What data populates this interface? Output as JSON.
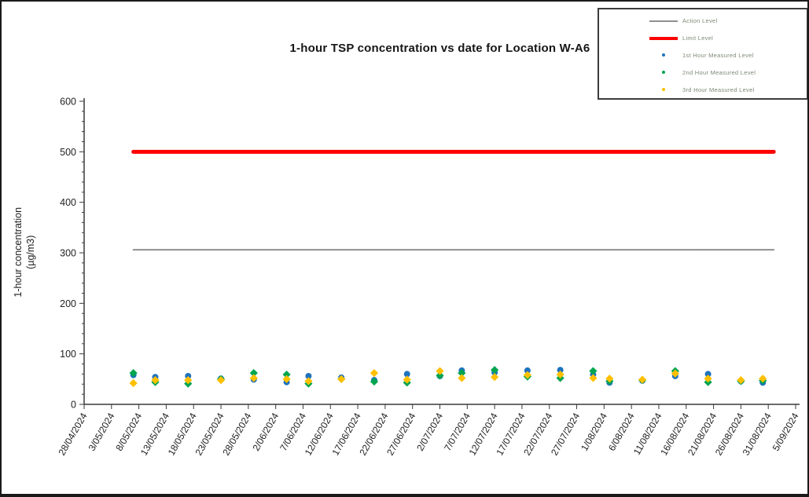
{
  "figure": {
    "background": "#ffffff",
    "border_color": "#1a1a1a"
  },
  "legend": {
    "items": [
      {
        "label": "Action Level",
        "marker": "line",
        "color": "#8f8f8f"
      },
      {
        "label": "Limit Level",
        "marker": "thickline",
        "color": "#ff0000"
      },
      {
        "label": "1st Hour Measured Level",
        "marker": "dot",
        "color": "#1e73be"
      },
      {
        "label": "2nd Hour Measured Level",
        "marker": "dot",
        "color": "#00a550"
      },
      {
        "label": "3rd Hour Measured Level",
        "marker": "dot",
        "color": "#ffc000"
      }
    ]
  },
  "chart_data": {
    "type": "scatter",
    "title": "1-hour TSP concentration vs date for Location  W-A6",
    "xlabel": "",
    "ylabel_lines": [
      "1-hour concentration",
      "(µg/m3)"
    ],
    "ylim": [
      0,
      600
    ],
    "ytick_major": 100,
    "ytick_minor": 20,
    "grid": "off",
    "legend_position": "top-right",
    "x_axis": {
      "range_days": [
        0,
        130
      ],
      "tick_interval_days": 5,
      "tick_labels": [
        "28/04/2024",
        "3/05/2024",
        "8/05/2024",
        "13/05/2024",
        "18/05/2024",
        "23/05/2024",
        "28/05/2024",
        "2/06/2024",
        "7/06/2024",
        "12/06/2024",
        "17/06/2024",
        "22/06/2024",
        "27/06/2024",
        "2/07/2024",
        "7/07/2024",
        "12/07/2024",
        "17/07/2024",
        "22/07/2024",
        "27/07/2024",
        "1/08/2024",
        "6/08/2024",
        "11/08/2024",
        "16/08/2024",
        "21/08/2024",
        "26/08/2024",
        "31/08/2024",
        "5/09/2024"
      ]
    },
    "reference_lines": [
      {
        "name": "Action Level",
        "value": 306,
        "color": "#8f8f8f",
        "stroke_width": 2,
        "span_days": [
          9,
          126
        ]
      },
      {
        "name": "Limit Level",
        "value": 500,
        "color": "#ff0000",
        "stroke_width": 5,
        "span_days": [
          9,
          126
        ]
      }
    ],
    "series": [
      {
        "name": "1st Hour Measured Level",
        "marker": "circle",
        "color": "#1e73be",
        "points": [
          [
            "7/05/2024",
            9,
            58
          ],
          [
            "11/05/2024",
            13,
            54
          ],
          [
            "17/05/2024",
            19,
            56
          ],
          [
            "23/05/2024",
            25,
            51
          ],
          [
            "29/05/2024",
            31,
            49
          ],
          [
            "4/06/2024",
            37,
            44
          ],
          [
            "8/06/2024",
            41,
            56
          ],
          [
            "14/06/2024",
            47,
            53
          ],
          [
            "20/06/2024",
            53,
            48
          ],
          [
            "26/06/2024",
            59,
            60
          ],
          [
            "2/07/2024",
            65,
            56
          ],
          [
            "6/07/2024",
            69,
            67
          ],
          [
            "12/07/2024",
            75,
            63
          ],
          [
            "18/07/2024",
            81,
            67
          ],
          [
            "24/07/2024",
            87,
            68
          ],
          [
            "30/07/2024",
            93,
            59
          ],
          [
            "2/08/2024",
            96,
            43
          ],
          [
            "8/08/2024",
            102,
            47
          ],
          [
            "14/08/2024",
            108,
            56
          ],
          [
            "20/08/2024",
            114,
            60
          ],
          [
            "26/08/2024",
            120,
            46
          ],
          [
            "30/08/2024",
            124,
            43
          ]
        ]
      },
      {
        "name": "2nd Hour Measured Level",
        "marker": "diamond",
        "color": "#00a550",
        "points": [
          [
            "7/05/2024",
            9,
            62
          ],
          [
            "11/05/2024",
            13,
            44
          ],
          [
            "17/05/2024",
            19,
            41
          ],
          [
            "23/05/2024",
            25,
            50
          ],
          [
            "29/05/2024",
            31,
            62
          ],
          [
            "4/06/2024",
            37,
            59
          ],
          [
            "8/06/2024",
            41,
            41
          ],
          [
            "14/06/2024",
            47,
            50
          ],
          [
            "20/06/2024",
            53,
            45
          ],
          [
            "26/06/2024",
            59,
            43
          ],
          [
            "2/07/2024",
            65,
            57
          ],
          [
            "6/07/2024",
            69,
            62
          ],
          [
            "12/07/2024",
            75,
            68
          ],
          [
            "18/07/2024",
            81,
            55
          ],
          [
            "24/07/2024",
            87,
            52
          ],
          [
            "30/07/2024",
            93,
            66
          ],
          [
            "2/08/2024",
            96,
            46
          ],
          [
            "8/08/2024",
            102,
            48
          ],
          [
            "14/08/2024",
            108,
            66
          ],
          [
            "20/08/2024",
            114,
            44
          ],
          [
            "26/08/2024",
            120,
            46
          ],
          [
            "30/08/2024",
            124,
            47
          ]
        ]
      },
      {
        "name": "3rd Hour Measured Level",
        "marker": "diamond",
        "color": "#ffc000",
        "points": [
          [
            "7/05/2024",
            9,
            42
          ],
          [
            "11/05/2024",
            13,
            48
          ],
          [
            "17/05/2024",
            19,
            48
          ],
          [
            "23/05/2024",
            25,
            48
          ],
          [
            "29/05/2024",
            31,
            52
          ],
          [
            "4/06/2024",
            37,
            50
          ],
          [
            "8/06/2024",
            41,
            46
          ],
          [
            "14/06/2024",
            47,
            50
          ],
          [
            "20/06/2024",
            53,
            62
          ],
          [
            "26/06/2024",
            59,
            49
          ],
          [
            "2/07/2024",
            65,
            66
          ],
          [
            "6/07/2024",
            69,
            52
          ],
          [
            "12/07/2024",
            75,
            54
          ],
          [
            "18/07/2024",
            81,
            58
          ],
          [
            "24/07/2024",
            87,
            59
          ],
          [
            "30/07/2024",
            93,
            52
          ],
          [
            "2/08/2024",
            96,
            51
          ],
          [
            "8/08/2024",
            102,
            49
          ],
          [
            "14/08/2024",
            108,
            61
          ],
          [
            "20/08/2024",
            114,
            51
          ],
          [
            "26/08/2024",
            120,
            48
          ],
          [
            "30/08/2024",
            124,
            51
          ]
        ]
      }
    ]
  }
}
